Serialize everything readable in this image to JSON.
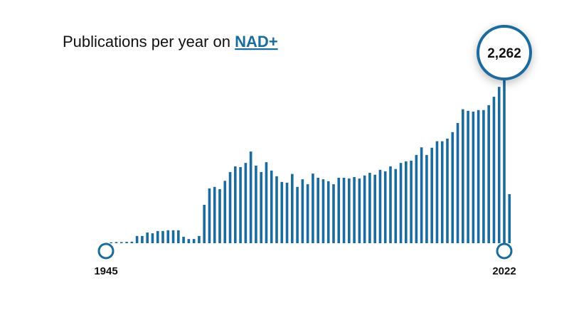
{
  "chart_data": {
    "type": "bar",
    "title": "Publications per year on",
    "title_link": "NAD+",
    "color": "#1a6b9e",
    "categories": [
      "1945",
      null,
      null,
      null,
      null,
      null,
      null,
      null,
      null,
      null,
      null,
      null,
      null,
      null,
      null,
      null,
      null,
      null,
      null,
      null,
      null,
      null,
      null,
      null,
      null,
      null,
      null,
      null,
      null,
      null,
      null,
      null,
      null,
      null,
      null,
      null,
      null,
      null,
      null,
      null,
      null,
      null,
      null,
      null,
      null,
      null,
      null,
      null,
      null,
      null,
      null,
      null,
      null,
      null,
      null,
      null,
      null,
      null,
      null,
      null,
      null,
      null,
      null,
      null,
      null,
      null,
      null,
      null,
      null,
      null,
      null,
      null,
      null,
      null,
      null,
      null,
      null,
      "2022",
      null
    ],
    "values": [
      5,
      12,
      15,
      15,
      18,
      20,
      95,
      95,
      140,
      130,
      160,
      160,
      170,
      170,
      170,
      85,
      55,
      55,
      95,
      505,
      720,
      740,
      710,
      820,
      935,
      1010,
      1000,
      1055,
      1205,
      1020,
      935,
      1065,
      955,
      880,
      805,
      795,
      910,
      740,
      840,
      775,
      915,
      860,
      840,
      815,
      775,
      860,
      860,
      850,
      870,
      850,
      890,
      925,
      900,
      965,
      945,
      1010,
      975,
      1055,
      1075,
      1085,
      1160,
      1260,
      1160,
      1255,
      1340,
      1340,
      1375,
      1460,
      1580,
      1760,
      1740,
      1730,
      1750,
      1750,
      1815,
      1925,
      2055,
      2262,
      645
    ],
    "value_labels": [
      null,
      null,
      null,
      null,
      null,
      null,
      null,
      null,
      null,
      null,
      null,
      null,
      null,
      null,
      null,
      null,
      null,
      null,
      null,
      null,
      null,
      null,
      null,
      null,
      null,
      null,
      null,
      null,
      null,
      null,
      null,
      null,
      null,
      null,
      null,
      null,
      null,
      null,
      null,
      null,
      null,
      null,
      null,
      null,
      null,
      null,
      null,
      null,
      null,
      null,
      null,
      null,
      null,
      null,
      null,
      null,
      null,
      null,
      null,
      null,
      null,
      null,
      null,
      null,
      null,
      null,
      null,
      null,
      null,
      null,
      null,
      null,
      null,
      null,
      null,
      null,
      null,
      "2,262",
      null
    ]
  }
}
